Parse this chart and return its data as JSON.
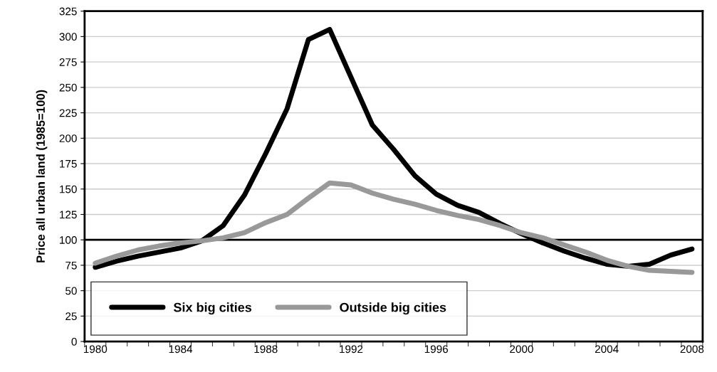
{
  "chart_data": {
    "type": "line",
    "ylabel": "Price all urban land (1985=100)",
    "categories": [
      "1980",
      null,
      null,
      null,
      "1984",
      null,
      null,
      null,
      "1988",
      null,
      null,
      null,
      "1992",
      null,
      null,
      null,
      "1996",
      null,
      null,
      null,
      "2000",
      null,
      null,
      null,
      "2004",
      null,
      null,
      null,
      "2008"
    ],
    "series": [
      {
        "name": "Six big cities",
        "color": "#000000",
        "values": [
          73,
          79,
          84,
          88,
          92,
          99,
          114,
          144,
          185,
          229,
          297,
          307,
          260,
          213,
          189,
          163,
          145,
          134,
          127,
          116,
          106,
          97,
          89,
          82,
          76,
          74,
          76,
          85,
          91
        ]
      },
      {
        "name": "Outside big cities",
        "color": "#999999",
        "values": [
          77,
          84,
          90,
          94,
          97,
          99,
          102,
          107,
          117,
          125,
          141,
          156,
          154,
          146,
          140,
          135,
          129,
          124,
          120,
          114,
          107,
          102,
          95,
          88,
          80,
          74,
          70,
          69,
          68
        ]
      }
    ],
    "ylim": [
      0,
      325
    ],
    "yticks": [
      0,
      25,
      50,
      75,
      100,
      125,
      150,
      175,
      200,
      225,
      250,
      275,
      300,
      325
    ],
    "ref_lines": [
      {
        "axis": "y",
        "value": 100,
        "color": "#000000"
      }
    ],
    "grid": "y",
    "legend": "bottom left",
    "line_style": "solid",
    "marker": "none"
  }
}
